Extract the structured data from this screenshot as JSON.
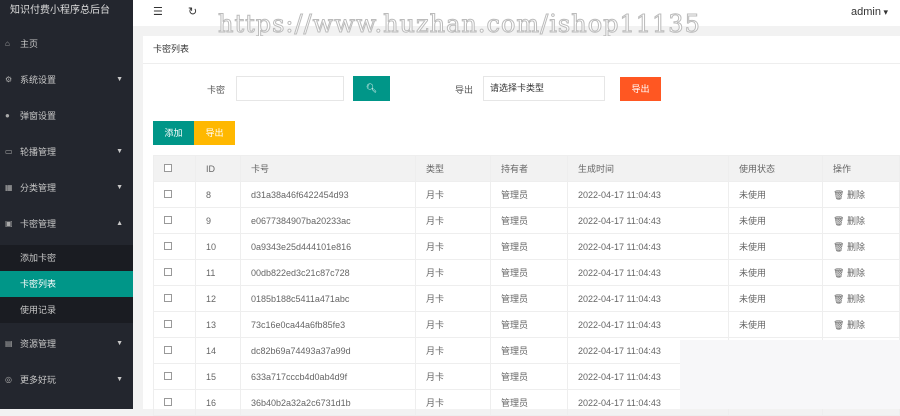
{
  "app_title": "知识付费小程序总后台",
  "watermark": "https://www.huzhan.com/ishop11135",
  "user": "admin",
  "sidebar": {
    "items": [
      {
        "label": "主页",
        "icon": "home-icon",
        "arrow": ""
      },
      {
        "label": "系统设置",
        "icon": "gear-icon",
        "arrow": "down"
      },
      {
        "label": "弹窗设置",
        "icon": "circle-icon",
        "arrow": ""
      },
      {
        "label": "轮播管理",
        "icon": "image-icon",
        "arrow": "down"
      },
      {
        "label": "分类管理",
        "icon": "category-icon",
        "arrow": "down"
      },
      {
        "label": "卡密管理",
        "icon": "card-icon",
        "arrow": "up"
      }
    ],
    "sub_items": [
      {
        "label": "添加卡密"
      },
      {
        "label": "卡密列表",
        "active": true
      },
      {
        "label": "使用记录"
      }
    ],
    "bottom_items": [
      {
        "label": "资源管理",
        "icon": "folder-icon",
        "arrow": "down"
      },
      {
        "label": "更多好玩",
        "icon": "more-icon",
        "arrow": "down"
      }
    ]
  },
  "panel": {
    "title": "卡密列表",
    "search_label": "卡密",
    "search_value": "",
    "export_label": "导出",
    "export_select": "请选择卡类型",
    "export_button": "导出",
    "add_button": "添加",
    "export_button2": "导出"
  },
  "colors": {
    "primary": "#009688",
    "warm": "#ffb800",
    "danger": "#ff5722",
    "sidebar": "#23262e"
  },
  "table": {
    "headers": [
      "ID",
      "卡号",
      "类型",
      "持有者",
      "生成时间",
      "使用状态",
      "操作"
    ],
    "rows": [
      [
        "8",
        "d31a38a46f6422454d93",
        "月卡",
        "管理员",
        "2022-04-17 11:04:43",
        "未使用",
        "删除"
      ],
      [
        "9",
        "e0677384907ba20233ac",
        "月卡",
        "管理员",
        "2022-04-17 11:04:43",
        "未使用",
        "删除"
      ],
      [
        "10",
        "0a9343e25d444101e816",
        "月卡",
        "管理员",
        "2022-04-17 11:04:43",
        "未使用",
        "删除"
      ],
      [
        "11",
        "00db822ed3c21c87c728",
        "月卡",
        "管理员",
        "2022-04-17 11:04:43",
        "未使用",
        "删除"
      ],
      [
        "12",
        "0185b188c5411a471abc",
        "月卡",
        "管理员",
        "2022-04-17 11:04:43",
        "未使用",
        "删除"
      ],
      [
        "13",
        "73c16e0ca44a6fb85fe3",
        "月卡",
        "管理员",
        "2022-04-17 11:04:43",
        "未使用",
        "删除"
      ],
      [
        "14",
        "dc82b69a74493a37a99d",
        "月卡",
        "管理员",
        "2022-04-17 11:04:43",
        "",
        ""
      ],
      [
        "15",
        "633a717cccb4d0ab4d9f",
        "月卡",
        "管理员",
        "2022-04-17 11:04:43",
        "",
        ""
      ],
      [
        "16",
        "36b40b2a32a2c6731d1b",
        "月卡",
        "管理员",
        "2022-04-17 11:04:43",
        "",
        ""
      ]
    ]
  }
}
